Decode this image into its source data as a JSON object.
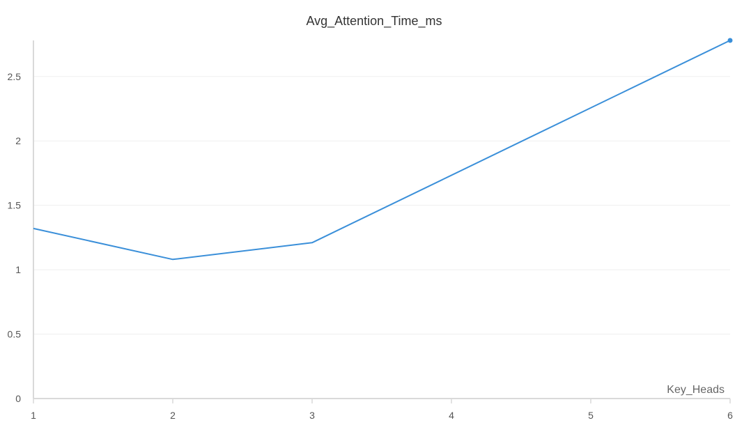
{
  "chart_data": {
    "type": "line",
    "title": "Avg_Attention_Time_ms",
    "xlabel": "Key_Heads",
    "ylabel": "",
    "x": [
      1,
      2,
      3,
      4,
      5,
      6
    ],
    "xticks": [
      "1",
      "2",
      "3",
      "4",
      "5",
      "6"
    ],
    "yticks": [
      "0",
      "0.5",
      "1",
      "1.5",
      "2",
      "2.5"
    ],
    "xlim": [
      1,
      6
    ],
    "ylim": [
      0,
      2.78
    ],
    "grid": true,
    "series": [
      {
        "color": "#3a8fd9",
        "points": [
          {
            "x": 1,
            "y": 1.32
          },
          {
            "x": 2,
            "y": 1.08
          },
          {
            "x": 3,
            "y": 1.21
          },
          {
            "x": 6,
            "y": 2.78
          }
        ]
      }
    ]
  }
}
